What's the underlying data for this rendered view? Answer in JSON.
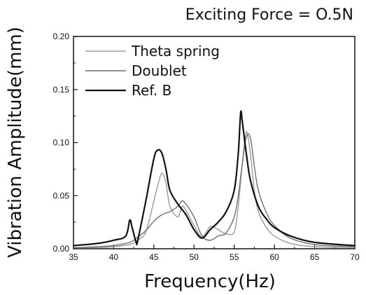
{
  "chart_data": {
    "type": "line",
    "title": "Exciting Force = O.5N",
    "xlabel": "Frequency(Hz)",
    "ylabel": "Vibration Amplitude(mm)",
    "xlim": [
      35,
      70
    ],
    "ylim": [
      0,
      0.2
    ],
    "xticks": [
      35,
      40,
      45,
      50,
      55,
      60,
      65,
      70
    ],
    "yticks": [
      0.0,
      0.05,
      0.1,
      0.15,
      0.2
    ],
    "xtick_labels": [
      "35",
      "40",
      "45",
      "50",
      "55",
      "60",
      "65",
      "70"
    ],
    "ytick_labels": [
      "0.00",
      "0.05",
      "0.10",
      "0.15",
      "0.20"
    ],
    "grid": false,
    "legend_position": "top-left",
    "series": [
      {
        "name": "Theta spring",
        "color": "#9a9a9a",
        "x": [
          35,
          38,
          40,
          42,
          43,
          44,
          45,
          45.5,
          46,
          46.5,
          47,
          48,
          48.5,
          49,
          50,
          51,
          52,
          53,
          54,
          55,
          55.5,
          56,
          56.5,
          57,
          57.5,
          58,
          59,
          60,
          62,
          65,
          70
        ],
        "y": [
          0.001,
          0.001,
          0.002,
          0.004,
          0.008,
          0.016,
          0.045,
          0.06,
          0.071,
          0.062,
          0.04,
          0.03,
          0.04,
          0.036,
          0.022,
          0.011,
          0.021,
          0.018,
          0.014,
          0.016,
          0.04,
          0.08,
          0.11,
          0.09,
          0.055,
          0.035,
          0.02,
          0.012,
          0.005,
          0.002,
          0.001
        ]
      },
      {
        "name": "Doublet",
        "color": "#6e6e6e",
        "x": [
          35,
          38,
          40,
          42,
          43,
          44,
          45,
          46,
          47,
          48,
          48.5,
          49,
          50,
          51,
          52,
          53,
          54,
          55,
          55.5,
          56,
          56.5,
          57,
          57.5,
          58,
          59,
          60,
          62,
          65,
          70
        ],
        "y": [
          0.001,
          0.002,
          0.003,
          0.006,
          0.011,
          0.017,
          0.026,
          0.032,
          0.035,
          0.04,
          0.045,
          0.042,
          0.03,
          0.012,
          0.008,
          0.012,
          0.015,
          0.03,
          0.05,
          0.08,
          0.105,
          0.105,
          0.078,
          0.055,
          0.034,
          0.022,
          0.01,
          0.004,
          0.002
        ]
      },
      {
        "name": "Ref. B",
        "color": "#111111",
        "x": [
          35,
          38,
          40,
          41.5,
          42,
          42.3,
          42.8,
          43,
          44,
          45,
          45.5,
          46,
          46.5,
          47,
          48,
          49,
          50,
          51,
          52,
          53,
          54,
          55,
          55.5,
          55.8,
          56,
          56.5,
          57,
          58,
          59,
          60,
          62,
          65,
          70
        ],
        "y": [
          0.003,
          0.005,
          0.008,
          0.012,
          0.027,
          0.02,
          0.006,
          0.008,
          0.045,
          0.085,
          0.093,
          0.09,
          0.075,
          0.055,
          0.042,
          0.032,
          0.018,
          0.01,
          0.018,
          0.025,
          0.035,
          0.055,
          0.09,
          0.128,
          0.12,
          0.09,
          0.065,
          0.04,
          0.028,
          0.02,
          0.012,
          0.006,
          0.003
        ]
      }
    ]
  }
}
